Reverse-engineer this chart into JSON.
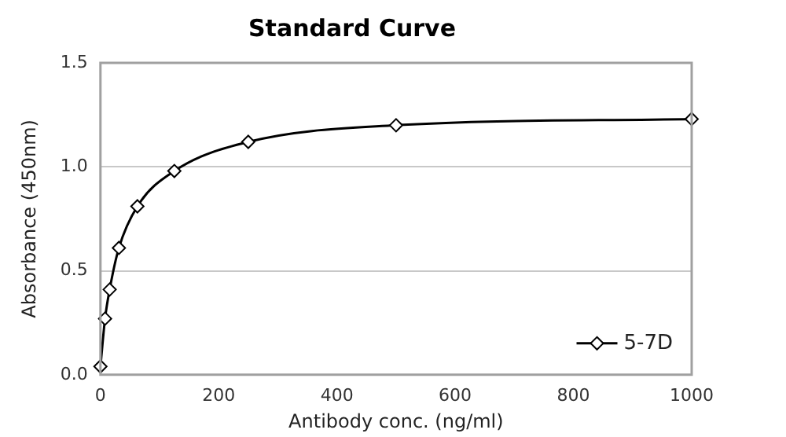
{
  "chart_data": {
    "type": "line",
    "title": "Standard Curve",
    "xlabel": "Antibody conc. (ng/ml)",
    "ylabel": "Absorbance (450nm)",
    "x": [
      0,
      7.8,
      15.6,
      31.25,
      62.5,
      125,
      250,
      500,
      1000
    ],
    "series": [
      {
        "name": "5-7D",
        "color": "#000000",
        "values": [
          0.04,
          0.27,
          0.41,
          0.61,
          0.81,
          0.98,
          1.12,
          1.2,
          1.23
        ]
      }
    ],
    "xlim": [
      0,
      1000
    ],
    "xticks": [
      0,
      200,
      400,
      600,
      800,
      1000
    ],
    "ylim": [
      0,
      1.5
    ],
    "yticks": [
      {
        "value": 0,
        "label": "0.0"
      },
      {
        "value": 0.5,
        "label": "0.5"
      },
      {
        "value": 1,
        "label": "1.0"
      },
      {
        "value": 1.5,
        "label": "1.5"
      }
    ],
    "grid": "y",
    "legend": "bottom right",
    "marker": "diamond",
    "line_style": "solid"
  }
}
